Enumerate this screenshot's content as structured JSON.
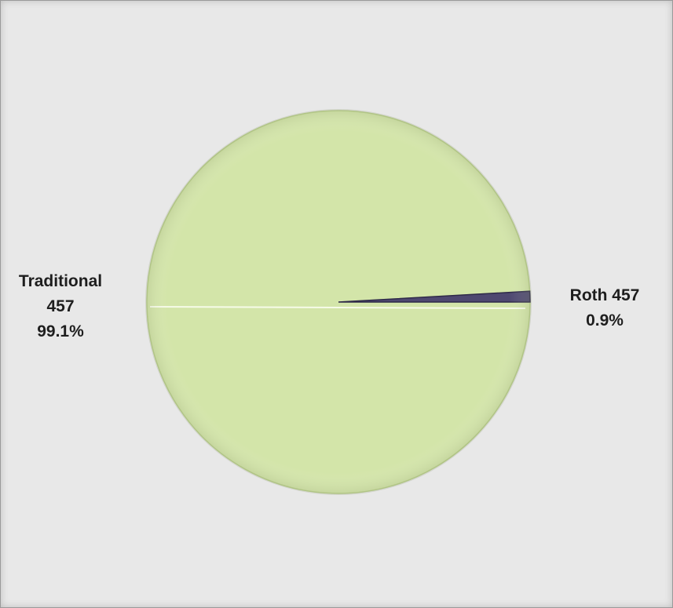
{
  "chart_data": {
    "type": "pie",
    "title": "",
    "slices": [
      {
        "label_lines": [
          "Traditional",
          "457"
        ],
        "percent_label": "99.1%",
        "value": 99.1,
        "color": "#d3e5a9"
      },
      {
        "label_lines": [
          "Roth 457"
        ],
        "percent_label": "0.9%",
        "value": 0.9,
        "color": "#4e4870"
      }
    ],
    "legend": "none"
  }
}
